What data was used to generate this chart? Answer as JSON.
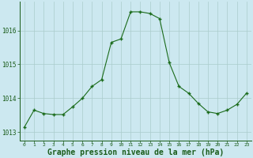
{
  "x": [
    0,
    1,
    2,
    3,
    4,
    5,
    6,
    7,
    8,
    9,
    10,
    11,
    12,
    13,
    14,
    15,
    16,
    17,
    18,
    19,
    20,
    21,
    22,
    23
  ],
  "y": [
    1013.15,
    1013.65,
    1013.55,
    1013.52,
    1013.52,
    1013.75,
    1014.0,
    1014.35,
    1014.55,
    1015.65,
    1015.75,
    1016.55,
    1016.55,
    1016.5,
    1016.35,
    1015.05,
    1014.35,
    1014.15,
    1013.85,
    1013.6,
    1013.55,
    1013.65,
    1013.82,
    1014.15
  ],
  "line_color": "#1a6b1a",
  "marker_color": "#1a6b1a",
  "bg_color": "#cce8f0",
  "grid_color": "#aacccc",
  "xlabel": "Graphe pression niveau de la mer (hPa)",
  "xlabel_fontsize": 7,
  "ytick_labels": [
    "1013",
    "1014",
    "1015",
    "1016"
  ],
  "ytick_values": [
    1013,
    1014,
    1015,
    1016
  ],
  "ylim": [
    1012.75,
    1016.85
  ],
  "xlim": [
    -0.5,
    23.5
  ],
  "figsize": [
    3.2,
    2.0
  ],
  "dpi": 100
}
